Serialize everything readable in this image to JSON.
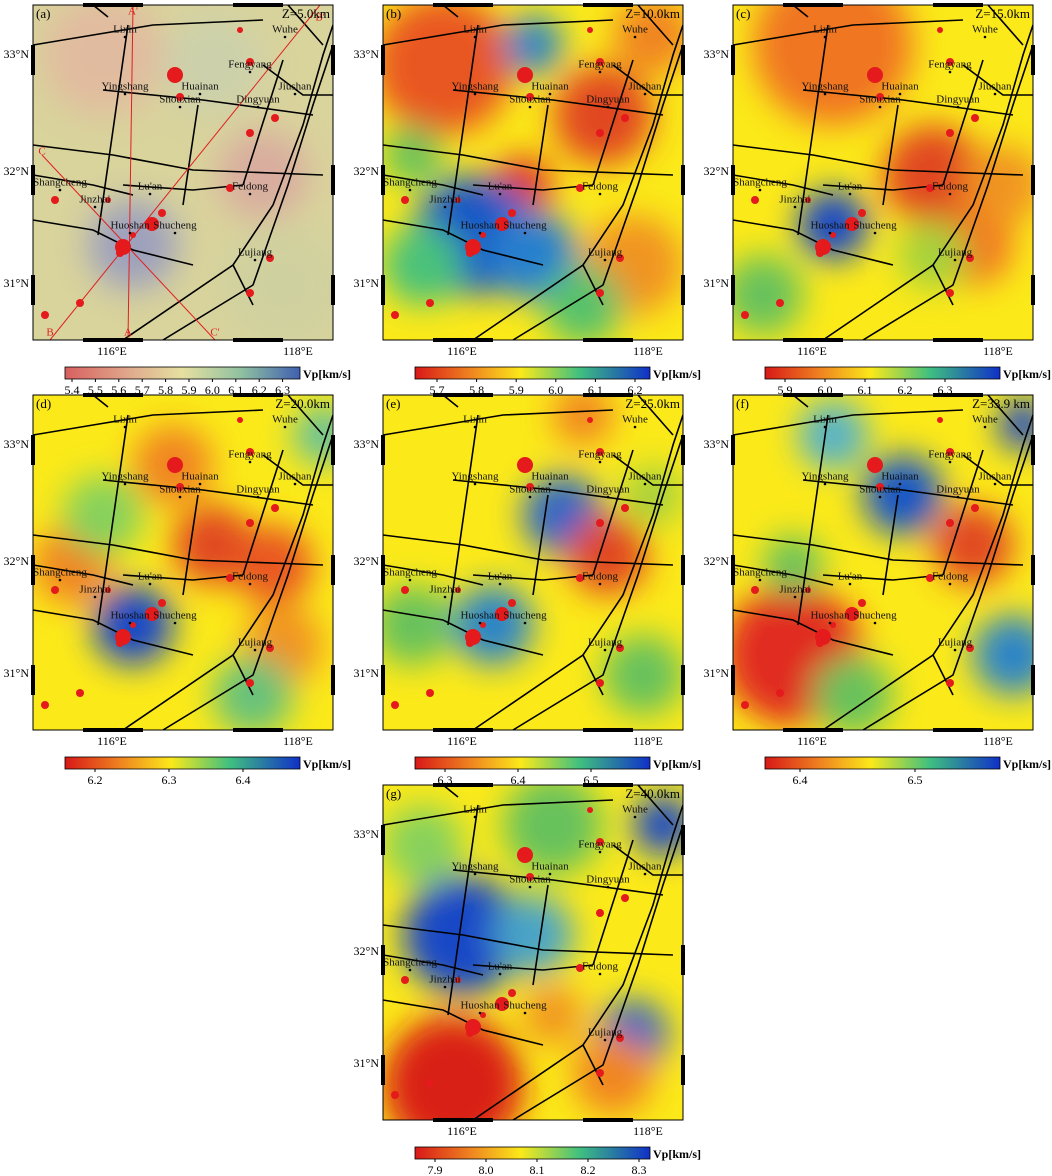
{
  "panels": [
    {
      "label": "(a)",
      "depth": "Z=5.0km",
      "colorbar": {
        "ticks": [
          "5.4",
          "5.5",
          "5.6",
          "5.7",
          "5.8",
          "5.9",
          "6.0",
          "6.1",
          "6.2",
          "6.3"
        ],
        "unit": "Vp[km/s]"
      }
    },
    {
      "label": "(b)",
      "depth": "Z=10.0km",
      "colorbar": {
        "ticks": [
          "5.7",
          "5.8",
          "5.9",
          "6.0",
          "6.1",
          "6.2"
        ],
        "unit": "Vp[km/s]"
      }
    },
    {
      "label": "(c)",
      "depth": "Z=15.0km",
      "colorbar": {
        "ticks": [
          "5.9",
          "6.0",
          "6.1",
          "6.2",
          "6.3"
        ],
        "unit": "Vp[km/s]"
      }
    },
    {
      "label": "(d)",
      "depth": "Z=20.0km",
      "colorbar": {
        "ticks": [
          "6.2",
          "6.3",
          "6.4"
        ],
        "unit": "Vp[km/s]"
      }
    },
    {
      "label": "(e)",
      "depth": "Z=25.0km",
      "colorbar": {
        "ticks": [
          "6.3",
          "6.4",
          "6.5"
        ],
        "unit": "Vp[km/s]"
      }
    },
    {
      "label": "(f)",
      "depth": "Z=33.9 km",
      "colorbar": {
        "ticks": [
          "6.4",
          "6.5"
        ],
        "unit": "Vp[km/s]"
      }
    },
    {
      "label": "(g)",
      "depth": "Z=40.0km",
      "colorbar": {
        "ticks": [
          "7.9",
          "8.0",
          "8.1",
          "8.2",
          "8.3"
        ],
        "unit": "Vp[km/s]"
      }
    }
  ],
  "cities": [
    "Lixin",
    "Wuhe",
    "Fengyang",
    "Yingshang",
    "Huainan",
    "Shouxian",
    "Dingyuan",
    "Jiushan",
    "Shangcheng",
    "Lu'an",
    "Feidong",
    "Jinzhai",
    "Huoshan",
    "Shucheng",
    "Lujiang"
  ],
  "axis": {
    "lat": [
      "33°N",
      "32°N",
      "31°N"
    ],
    "lon": [
      "116°E",
      "118°E"
    ]
  },
  "profile_labels": [
    "A'",
    "B'",
    "C",
    "B",
    "A",
    "C'"
  ]
}
